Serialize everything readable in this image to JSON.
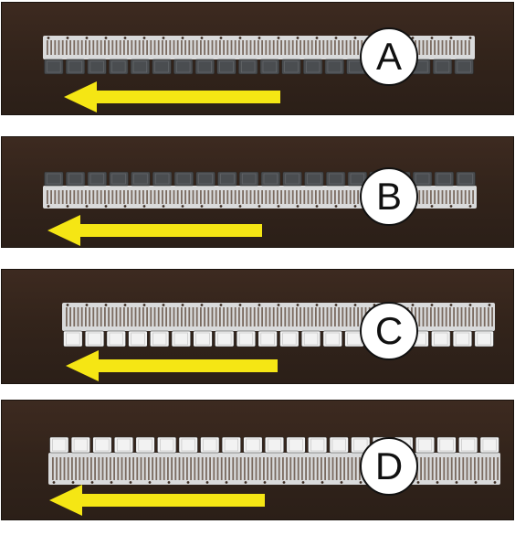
{
  "panels": [
    {
      "label": "A",
      "orientation": "tabs-down-dark",
      "arrow_direction": "left"
    },
    {
      "label": "B",
      "orientation": "tabs-up-dark",
      "arrow_direction": "left"
    },
    {
      "label": "C",
      "orientation": "tabs-down-white",
      "arrow_direction": "left"
    },
    {
      "label": "D",
      "orientation": "tabs-up-white",
      "arrow_direction": "left"
    }
  ],
  "colors": {
    "background": "#33241b",
    "strip_metal": "#d9dadb",
    "tab_dark": "#4a4d50",
    "tab_white": "#f2f2f2",
    "arrow": "#f5e614",
    "circle_fill": "#ffffff",
    "circle_stroke": "#111111"
  }
}
